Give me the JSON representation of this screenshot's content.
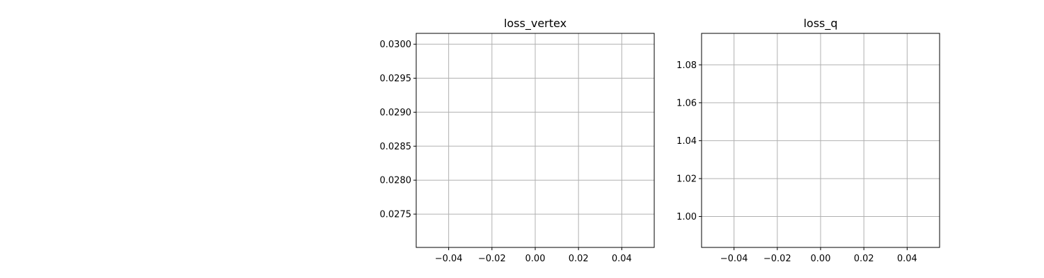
{
  "chart_data": [
    {
      "type": "line",
      "title": "loss_vertex",
      "xlabel": "",
      "ylabel": "",
      "xlim": [
        -0.055,
        0.055
      ],
      "ylim": [
        0.02701,
        0.03016
      ],
      "xticks": [
        -0.04,
        -0.02,
        0.0,
        0.02,
        0.04
      ],
      "xtick_labels": [
        "−0.04",
        "−0.02",
        "0.00",
        "0.02",
        "0.04"
      ],
      "yticks": [
        0.0275,
        0.028,
        0.0285,
        0.029,
        0.0295,
        0.03
      ],
      "ytick_labels": [
        "0.0275",
        "0.0280",
        "0.0285",
        "0.0290",
        "0.0295",
        "0.0300"
      ],
      "grid": true,
      "series": []
    },
    {
      "type": "line",
      "title": "loss_q",
      "xlabel": "",
      "ylabel": "",
      "xlim": [
        -0.055,
        0.055
      ],
      "ylim": [
        0.9837,
        1.0966
      ],
      "xticks": [
        -0.04,
        -0.02,
        0.0,
        0.02,
        0.04
      ],
      "xtick_labels": [
        "−0.04",
        "−0.02",
        "0.00",
        "0.02",
        "0.04"
      ],
      "yticks": [
        1.0,
        1.02,
        1.04,
        1.06,
        1.08
      ],
      "ytick_labels": [
        "1.00",
        "1.02",
        "1.04",
        "1.06",
        "1.08"
      ],
      "grid": true,
      "series": []
    }
  ]
}
